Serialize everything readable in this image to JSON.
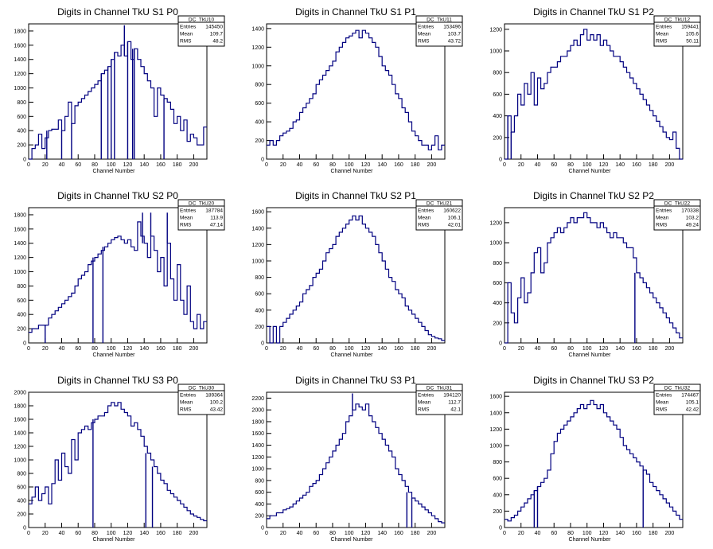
{
  "xlabel": "Channel Number",
  "colors": {
    "line": "#000080",
    "axis": "#000000",
    "background": "#ffffff"
  },
  "stats_labels": [
    "Entries",
    "Mean",
    "RMS"
  ],
  "x_ticks": [
    0,
    20,
    40,
    60,
    80,
    100,
    120,
    140,
    160,
    180,
    200
  ],
  "chart_data": [
    {
      "type": "histogram",
      "title": "Digits in Channel TkU S1 P0",
      "stats": {
        "name": "DC_TkU10",
        "entries": "145450",
        "mean": "109.7",
        "rms": "48.2"
      },
      "xlim": [
        0,
        216
      ],
      "ylim": [
        0,
        1900
      ],
      "yticks": [
        0,
        200,
        400,
        600,
        800,
        1000,
        1200,
        1400,
        1600,
        1800
      ],
      "x": [
        0,
        4,
        8,
        12,
        16,
        20,
        24,
        28,
        32,
        36,
        40,
        44,
        48,
        52,
        56,
        60,
        64,
        68,
        72,
        76,
        80,
        84,
        88,
        92,
        96,
        100,
        104,
        108,
        112,
        116,
        120,
        124,
        128,
        132,
        136,
        140,
        144,
        148,
        152,
        156,
        160,
        164,
        168,
        172,
        176,
        180,
        184,
        188,
        192,
        196,
        200,
        204,
        208,
        212,
        216
      ],
      "y": [
        0,
        150,
        200,
        350,
        150,
        300,
        400,
        420,
        420,
        550,
        400,
        600,
        800,
        500,
        750,
        800,
        850,
        900,
        950,
        1000,
        1050,
        1100,
        1200,
        1250,
        1300,
        1400,
        1500,
        1450,
        1600,
        1450,
        1650,
        1400,
        1550,
        1400,
        1300,
        1200,
        1100,
        1000,
        600,
        1000,
        900,
        850,
        800,
        700,
        500,
        600,
        400,
        550,
        250,
        350,
        300,
        200,
        200,
        450,
        450
      ],
      "spikes": [
        [
          22,
          0
        ],
        [
          40,
          0
        ],
        [
          52,
          0
        ],
        [
          88,
          0
        ],
        [
          96,
          0
        ],
        [
          100,
          0
        ],
        [
          104,
          0
        ],
        [
          116,
          1880
        ],
        [
          120,
          0
        ],
        [
          126,
          0
        ],
        [
          128,
          0
        ],
        [
          164,
          0
        ]
      ]
    },
    {
      "type": "histogram",
      "title": "Digits in Channel TkU S1 P1",
      "stats": {
        "name": "DC_TkU11",
        "entries": "153496",
        "mean": "103.7",
        "rms": "43.72"
      },
      "xlim": [
        0,
        216
      ],
      "ylim": [
        0,
        1450
      ],
      "yticks": [
        0,
        200,
        400,
        600,
        800,
        1000,
        1200,
        1400
      ],
      "x": [
        0,
        4,
        8,
        12,
        16,
        20,
        24,
        28,
        32,
        36,
        40,
        44,
        48,
        52,
        56,
        60,
        64,
        68,
        72,
        76,
        80,
        84,
        88,
        92,
        96,
        100,
        104,
        108,
        112,
        116,
        120,
        124,
        128,
        132,
        136,
        140,
        144,
        148,
        152,
        156,
        160,
        164,
        168,
        172,
        176,
        180,
        184,
        188,
        192,
        196,
        200,
        204,
        208,
        212,
        216
      ],
      "y": [
        150,
        200,
        150,
        200,
        250,
        280,
        300,
        330,
        400,
        420,
        500,
        550,
        600,
        650,
        700,
        800,
        850,
        900,
        950,
        1000,
        1050,
        1150,
        1200,
        1250,
        1300,
        1320,
        1350,
        1380,
        1300,
        1380,
        1350,
        1300,
        1250,
        1200,
        1100,
        1000,
        950,
        900,
        800,
        700,
        650,
        550,
        500,
        400,
        300,
        250,
        200,
        150,
        150,
        100,
        150,
        250,
        100,
        150,
        100
      ],
      "spikes": []
    },
    {
      "type": "histogram",
      "title": "Digits in Channel TkU S1 P2",
      "stats": {
        "name": "DC_TkU12",
        "entries": "159441",
        "mean": "105.6",
        "rms": "50.11"
      },
      "xlim": [
        0,
        216
      ],
      "ylim": [
        0,
        1250
      ],
      "yticks": [
        0,
        200,
        400,
        600,
        800,
        1000,
        1200
      ],
      "x": [
        0,
        4,
        8,
        12,
        16,
        20,
        24,
        28,
        32,
        36,
        40,
        44,
        48,
        52,
        56,
        60,
        64,
        68,
        72,
        76,
        80,
        84,
        88,
        92,
        96,
        100,
        104,
        108,
        112,
        116,
        120,
        124,
        128,
        132,
        136,
        140,
        144,
        148,
        152,
        156,
        160,
        164,
        168,
        172,
        176,
        180,
        184,
        188,
        192,
        196,
        200,
        204,
        208,
        212,
        216
      ],
      "y": [
        0,
        400,
        250,
        400,
        600,
        500,
        700,
        600,
        800,
        500,
        750,
        650,
        700,
        800,
        850,
        850,
        900,
        950,
        950,
        1000,
        1050,
        1100,
        1050,
        1150,
        1200,
        1100,
        1150,
        1100,
        1150,
        1050,
        1100,
        1050,
        1000,
        950,
        950,
        900,
        850,
        800,
        750,
        700,
        650,
        600,
        550,
        500,
        450,
        400,
        350,
        300,
        250,
        200,
        180,
        250,
        100,
        0,
        0
      ],
      "spikes": [
        [
          4,
          0
        ],
        [
          8,
          0
        ]
      ]
    },
    {
      "type": "histogram",
      "title": "Digits in Channel TkU S2 P0",
      "stats": {
        "name": "DC_TkU20",
        "entries": "187784",
        "mean": "113.9",
        "rms": "47.14"
      },
      "xlim": [
        0,
        216
      ],
      "ylim": [
        0,
        1900
      ],
      "yticks": [
        0,
        200,
        400,
        600,
        800,
        1000,
        1200,
        1400,
        1600,
        1800
      ],
      "x": [
        0,
        4,
        8,
        12,
        16,
        20,
        24,
        28,
        32,
        36,
        40,
        44,
        48,
        52,
        56,
        60,
        64,
        68,
        72,
        76,
        80,
        84,
        88,
        92,
        96,
        100,
        104,
        108,
        112,
        116,
        120,
        124,
        128,
        132,
        136,
        140,
        144,
        148,
        152,
        156,
        160,
        164,
        168,
        172,
        176,
        180,
        184,
        188,
        192,
        196,
        200,
        204,
        208,
        212,
        216
      ],
      "y": [
        150,
        200,
        200,
        250,
        250,
        250,
        350,
        400,
        450,
        500,
        550,
        600,
        650,
        700,
        800,
        900,
        950,
        1000,
        1100,
        1150,
        1200,
        1250,
        1300,
        1350,
        1400,
        1450,
        1480,
        1500,
        1450,
        1400,
        1450,
        1350,
        1300,
        1700,
        1500,
        1400,
        1200,
        1500,
        1300,
        1000,
        1200,
        800,
        1400,
        900,
        600,
        1100,
        600,
        400,
        800,
        300,
        200,
        400,
        200,
        300,
        200
      ],
      "spikes": [
        [
          20,
          0
        ],
        [
          78,
          0
        ],
        [
          90,
          0
        ],
        [
          138,
          1830
        ],
        [
          148,
          1830
        ],
        [
          168,
          1830
        ]
      ]
    },
    {
      "type": "histogram",
      "title": "Digits in Channel TkU S2 P1",
      "stats": {
        "name": "DC_TkU21",
        "entries": "160622",
        "mean": "106.1",
        "rms": "42.01"
      },
      "xlim": [
        0,
        216
      ],
      "ylim": [
        0,
        1650
      ],
      "yticks": [
        0,
        200,
        400,
        600,
        800,
        1000,
        1200,
        1400,
        1600
      ],
      "x": [
        0,
        4,
        8,
        12,
        16,
        20,
        24,
        28,
        32,
        36,
        40,
        44,
        48,
        52,
        56,
        60,
        64,
        68,
        72,
        76,
        80,
        84,
        88,
        92,
        96,
        100,
        104,
        108,
        112,
        116,
        120,
        124,
        128,
        132,
        136,
        140,
        144,
        148,
        152,
        156,
        160,
        164,
        168,
        172,
        176,
        180,
        184,
        188,
        192,
        196,
        200,
        204,
        208,
        212,
        216
      ],
      "y": [
        200,
        0,
        200,
        0,
        200,
        250,
        300,
        350,
        400,
        450,
        500,
        600,
        650,
        700,
        800,
        850,
        900,
        1000,
        1100,
        1150,
        1200,
        1300,
        1350,
        1400,
        1450,
        1500,
        1550,
        1500,
        1550,
        1450,
        1400,
        1350,
        1300,
        1200,
        1100,
        1000,
        900,
        800,
        750,
        650,
        600,
        550,
        450,
        400,
        350,
        300,
        250,
        200,
        150,
        100,
        80,
        60,
        50,
        30,
        20
      ],
      "spikes": []
    },
    {
      "type": "histogram",
      "title": "Digits in Channel TkU S2 P2",
      "stats": {
        "name": "DC_TkU22",
        "entries": "170338",
        "mean": "103.2",
        "rms": "49.24"
      },
      "xlim": [
        0,
        216
      ],
      "ylim": [
        0,
        1350
      ],
      "yticks": [
        0,
        200,
        400,
        600,
        800,
        1000,
        1200
      ],
      "x": [
        0,
        4,
        8,
        12,
        16,
        20,
        24,
        28,
        32,
        36,
        40,
        44,
        48,
        52,
        56,
        60,
        64,
        68,
        72,
        76,
        80,
        84,
        88,
        92,
        96,
        100,
        104,
        108,
        112,
        116,
        120,
        124,
        128,
        132,
        136,
        140,
        144,
        148,
        152,
        156,
        160,
        164,
        168,
        172,
        176,
        180,
        184,
        188,
        192,
        196,
        200,
        204,
        208,
        212,
        216
      ],
      "y": [
        0,
        600,
        300,
        200,
        450,
        650,
        400,
        500,
        700,
        900,
        950,
        700,
        800,
        1000,
        1050,
        1100,
        1150,
        1100,
        1150,
        1200,
        1250,
        1200,
        1250,
        1250,
        1300,
        1250,
        1200,
        1200,
        1150,
        1200,
        1150,
        1100,
        1050,
        1100,
        1050,
        1050,
        1000,
        950,
        950,
        850,
        700,
        650,
        600,
        550,
        500,
        450,
        400,
        350,
        300,
        250,
        200,
        150,
        100,
        50,
        0
      ],
      "spikes": [
        [
          158,
          0
        ]
      ]
    },
    {
      "type": "histogram",
      "title": "Digits in Channel TkU S3 P0",
      "stats": {
        "name": "DC_TkU30",
        "entries": "189364",
        "mean": "100.2",
        "rms": "43.42"
      },
      "xlim": [
        0,
        216
      ],
      "ylim": [
        0,
        2000
      ],
      "yticks": [
        0,
        200,
        400,
        600,
        800,
        1000,
        1200,
        1400,
        1600,
        1800,
        2000
      ],
      "x": [
        0,
        4,
        8,
        12,
        16,
        20,
        24,
        28,
        32,
        36,
        40,
        44,
        48,
        52,
        56,
        60,
        64,
        68,
        72,
        76,
        80,
        84,
        88,
        92,
        96,
        100,
        104,
        108,
        112,
        116,
        120,
        124,
        128,
        132,
        136,
        140,
        144,
        148,
        152,
        156,
        160,
        164,
        168,
        172,
        176,
        180,
        184,
        188,
        192,
        196,
        200,
        204,
        208,
        212,
        216
      ],
      "y": [
        350,
        450,
        600,
        400,
        500,
        600,
        350,
        650,
        1000,
        700,
        1100,
        900,
        800,
        1300,
        1000,
        1400,
        1450,
        1500,
        1450,
        1550,
        1600,
        1650,
        1650,
        1700,
        1800,
        1850,
        1800,
        1850,
        1750,
        1700,
        1650,
        1500,
        1550,
        1450,
        1350,
        1200,
        1100,
        1000,
        900,
        800,
        700,
        650,
        550,
        500,
        450,
        400,
        350,
        300,
        250,
        200,
        170,
        150,
        120,
        100,
        50
      ],
      "spikes": [
        [
          78,
          0
        ],
        [
          142,
          0
        ],
        [
          150,
          0
        ]
      ]
    },
    {
      "type": "histogram",
      "title": "Digits in Channel TkU S3 P1",
      "stats": {
        "name": "DC_TkU31",
        "entries": "194120",
        "mean": "112.7",
        "rms": "42.1"
      },
      "xlim": [
        0,
        216
      ],
      "ylim": [
        0,
        2300
      ],
      "yticks": [
        0,
        200,
        400,
        600,
        800,
        1000,
        1200,
        1400,
        1600,
        1800,
        2000,
        2200
      ],
      "x": [
        0,
        4,
        8,
        12,
        16,
        20,
        24,
        28,
        32,
        36,
        40,
        44,
        48,
        52,
        56,
        60,
        64,
        68,
        72,
        76,
        80,
        84,
        88,
        92,
        96,
        100,
        104,
        108,
        112,
        116,
        120,
        124,
        128,
        132,
        136,
        140,
        144,
        148,
        152,
        156,
        160,
        164,
        168,
        172,
        176,
        180,
        184,
        188,
        192,
        196,
        200,
        204,
        208,
        212,
        216
      ],
      "y": [
        150,
        200,
        200,
        250,
        250,
        300,
        320,
        350,
        400,
        450,
        500,
        550,
        600,
        700,
        750,
        800,
        900,
        1000,
        1100,
        1200,
        1300,
        1400,
        1500,
        1600,
        1800,
        1900,
        2000,
        2100,
        2050,
        2000,
        2100,
        1900,
        1800,
        1700,
        1600,
        1500,
        1400,
        1300,
        1200,
        1000,
        900,
        800,
        700,
        600,
        500,
        450,
        400,
        350,
        300,
        250,
        200,
        150,
        100,
        80,
        60
      ],
      "spikes": [
        [
          104,
          2280
        ],
        [
          170,
          0
        ],
        [
          176,
          0
        ]
      ]
    },
    {
      "type": "histogram",
      "title": "Digits in Channel TkU S3 P2",
      "stats": {
        "name": "DC_TkU32",
        "entries": "174467",
        "mean": "105.1",
        "rms": "42.42"
      },
      "xlim": [
        0,
        216
      ],
      "ylim": [
        0,
        1650
      ],
      "yticks": [
        0,
        200,
        400,
        600,
        800,
        1000,
        1200,
        1400,
        1600
      ],
      "x": [
        0,
        4,
        8,
        12,
        16,
        20,
        24,
        28,
        32,
        36,
        40,
        44,
        48,
        52,
        56,
        60,
        64,
        68,
        72,
        76,
        80,
        84,
        88,
        92,
        96,
        100,
        104,
        108,
        112,
        116,
        120,
        124,
        128,
        132,
        136,
        140,
        144,
        148,
        152,
        156,
        160,
        164,
        168,
        172,
        176,
        180,
        184,
        188,
        192,
        196,
        200,
        204,
        208,
        212,
        216
      ],
      "y": [
        100,
        80,
        120,
        150,
        200,
        250,
        300,
        350,
        400,
        450,
        500,
        550,
        600,
        700,
        900,
        1050,
        1150,
        1200,
        1250,
        1300,
        1350,
        1400,
        1450,
        1500,
        1450,
        1500,
        1550,
        1500,
        1450,
        1500,
        1400,
        1350,
        1300,
        1250,
        1200,
        1100,
        1000,
        950,
        900,
        850,
        800,
        750,
        700,
        650,
        550,
        500,
        450,
        400,
        350,
        300,
        250,
        200,
        150,
        100,
        50
      ],
      "spikes": [
        [
          36,
          0
        ],
        [
          40,
          0
        ],
        [
          168,
          0
        ]
      ]
    }
  ]
}
